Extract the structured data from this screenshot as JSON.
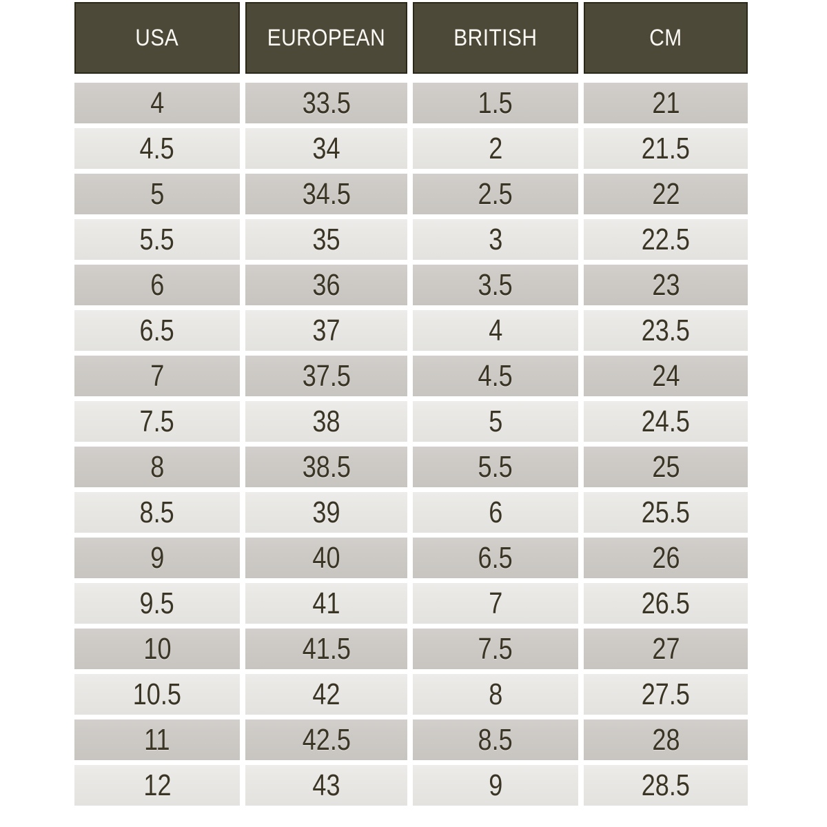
{
  "chart_data": {
    "type": "table",
    "columns": [
      "USA",
      "EUROPEAN",
      "BRITISH",
      "CM"
    ],
    "rows": [
      [
        "4",
        "33.5",
        "1.5",
        "21"
      ],
      [
        "4.5",
        "34",
        "2",
        "21.5"
      ],
      [
        "5",
        "34.5",
        "2.5",
        "22"
      ],
      [
        "5.5",
        "35",
        "3",
        "22.5"
      ],
      [
        "6",
        "36",
        "3.5",
        "23"
      ],
      [
        "6.5",
        "37",
        "4",
        "23.5"
      ],
      [
        "7",
        "37.5",
        "4.5",
        "24"
      ],
      [
        "7.5",
        "38",
        "5",
        "24.5"
      ],
      [
        "8",
        "38.5",
        "5.5",
        "25"
      ],
      [
        "8.5",
        "39",
        "6",
        "25.5"
      ],
      [
        "9",
        "40",
        "6.5",
        "26"
      ],
      [
        "9.5",
        "41",
        "7",
        "26.5"
      ],
      [
        "10",
        "41.5",
        "7.5",
        "27"
      ],
      [
        "10.5",
        "42",
        "8",
        "27.5"
      ],
      [
        "11",
        "42.5",
        "8.5",
        "28"
      ],
      [
        "12",
        "43",
        "9",
        "28.5"
      ]
    ],
    "layout": {
      "striping": "odd-rows-dark",
      "header_position": "top"
    }
  },
  "colors": {
    "page_bg": "#ffffff",
    "header_bg": "#4d4939",
    "header_border": "#2b2819",
    "header_text": "#faf8f3",
    "row_dark": "#cecbc7",
    "row_light": "#e9e8e5",
    "cell_text": "#3b3526"
  }
}
